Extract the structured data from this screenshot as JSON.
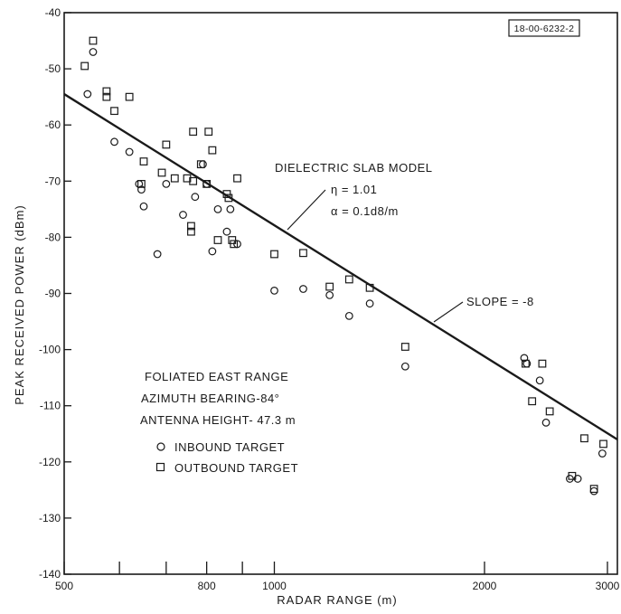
{
  "chart_data": {
    "type": "scatter",
    "x_scale": "log",
    "xlabel": "RADAR RANGE (m)",
    "ylabel": "PEAK RECEIVED POWER (dBm)",
    "xlim": [
      500,
      3100
    ],
    "ylim": [
      -140,
      -40
    ],
    "x_ticks_labeled": [
      {
        "value": 500,
        "label": "500"
      },
      {
        "value": 800,
        "label": "800"
      },
      {
        "value": 1000,
        "label": "1000"
      },
      {
        "value": 2000,
        "label": "2000"
      },
      {
        "value": 3000,
        "label": "3000"
      }
    ],
    "x_minor_ticks": [
      600,
      700,
      900
    ],
    "y_ticks": [
      {
        "value": -40,
        "label": "-40"
      },
      {
        "value": -50,
        "label": "-50"
      },
      {
        "value": -60,
        "label": "-60"
      },
      {
        "value": -70,
        "label": "-70"
      },
      {
        "value": -80,
        "label": "-80"
      },
      {
        "value": -90,
        "label": "-90"
      },
      {
        "value": -100,
        "label": "-100"
      },
      {
        "value": -110,
        "label": "-110"
      },
      {
        "value": -120,
        "label": "-120"
      },
      {
        "value": -130,
        "label": "-130"
      },
      {
        "value": -140,
        "label": "-140"
      }
    ],
    "series": [
      {
        "name": "INBOUND TARGET",
        "marker": "circle",
        "points": [
          [
            540,
            -54.5
          ],
          [
            550,
            -47
          ],
          [
            590,
            -63
          ],
          [
            620,
            -64.8
          ],
          [
            640,
            -70.5
          ],
          [
            645,
            -71.5
          ],
          [
            650,
            -74.5
          ],
          [
            680,
            -83
          ],
          [
            700,
            -70.5
          ],
          [
            740,
            -76
          ],
          [
            770,
            -72.8
          ],
          [
            790,
            -67
          ],
          [
            800,
            -70.5
          ],
          [
            815,
            -82.5
          ],
          [
            830,
            -75
          ],
          [
            855,
            -79
          ],
          [
            865,
            -75
          ],
          [
            885,
            -81.2
          ],
          [
            1000,
            -89.5
          ],
          [
            1100,
            -89.2
          ],
          [
            1200,
            -90.3
          ],
          [
            1280,
            -94
          ],
          [
            1370,
            -91.8
          ],
          [
            1540,
            -103
          ],
          [
            2280,
            -101.5
          ],
          [
            2300,
            -102.5
          ],
          [
            2400,
            -105.5
          ],
          [
            2450,
            -113
          ],
          [
            2650,
            -123
          ],
          [
            2720,
            -123
          ],
          [
            2870,
            -125.2
          ],
          [
            2950,
            -118.5
          ]
        ]
      },
      {
        "name": "OUTBOUND TARGET",
        "marker": "square",
        "points": [
          [
            535,
            -49.5
          ],
          [
            550,
            -45
          ],
          [
            575,
            -54
          ],
          [
            575,
            -55
          ],
          [
            590,
            -57.5
          ],
          [
            620,
            -55
          ],
          [
            650,
            -66.5
          ],
          [
            645,
            -70.5
          ],
          [
            700,
            -63.5
          ],
          [
            690,
            -68.5
          ],
          [
            720,
            -69.5
          ],
          [
            750,
            -69.5
          ],
          [
            765,
            -70
          ],
          [
            765,
            -61.2
          ],
          [
            785,
            -67
          ],
          [
            805,
            -61.2
          ],
          [
            815,
            -64.5
          ],
          [
            800,
            -70.5
          ],
          [
            855,
            -72.3
          ],
          [
            860,
            -73
          ],
          [
            885,
            -69.5
          ],
          [
            870,
            -80.5
          ],
          [
            875,
            -81.2
          ],
          [
            830,
            -80.5
          ],
          [
            760,
            -78
          ],
          [
            760,
            -79
          ],
          [
            1000,
            -83
          ],
          [
            1100,
            -82.8
          ],
          [
            1200,
            -88.8
          ],
          [
            1280,
            -87.5
          ],
          [
            1370,
            -89
          ],
          [
            1540,
            -99.5
          ],
          [
            2290,
            -102.5
          ],
          [
            2340,
            -109.2
          ],
          [
            2420,
            -102.5
          ],
          [
            2480,
            -111
          ],
          [
            2670,
            -122.5
          ],
          [
            2780,
            -115.8
          ],
          [
            2870,
            -124.8
          ],
          [
            2960,
            -116.8
          ]
        ]
      }
    ],
    "fit_line": {
      "label": "SLOPE = -8",
      "from": [
        500,
        -54.5
      ],
      "to": [
        3100,
        -116
      ]
    },
    "annotations": {
      "model_title": "DIELECTRIC SLAB MODEL",
      "eta_line": "η = 1.01",
      "alpha_line": "α = 0.1d8/m",
      "slope_label": "SLOPE = -8",
      "site_line1": "FOLIATED EAST RANGE",
      "site_line2": "AZIMUTH BEARING-84°",
      "site_line3": "ANTENNA HEIGHT- 47.3 m",
      "figure_id": "18-00-6232-2"
    },
    "legend": {
      "placement": "bottom-left",
      "items": [
        {
          "marker": "circle",
          "label": "INBOUND TARGET"
        },
        {
          "marker": "square",
          "label": "OUTBOUND TARGET"
        }
      ]
    },
    "grid": false
  }
}
